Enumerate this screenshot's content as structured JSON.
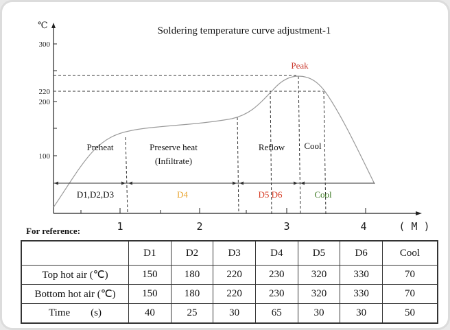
{
  "title": "Soldering temperature curve adjustment-1",
  "y_axis": {
    "unit": "℃",
    "ticks": [
      "300",
      "220",
      "200",
      "100"
    ]
  },
  "x_axis": {
    "unit": "( M )",
    "ticks": [
      "1",
      "2",
      "3",
      "4"
    ]
  },
  "phases": {
    "preheat": "Preheat",
    "preserve": "Preserve heat",
    "infiltrate": "(Infiltrate)",
    "reflow": "Reflow",
    "cool": "Cool",
    "peak": "Peak"
  },
  "zones": {
    "d123": "D1,D2,D3",
    "d4": "D4",
    "d56": "D5 D6",
    "cool": "Cool"
  },
  "colors": {
    "d4": "#e8a22a",
    "d56": "#d63a22",
    "cool": "#3f7a25",
    "peak": "#c8352a",
    "curve": "#9a9a9a"
  },
  "reference_label": "For reference:",
  "table": {
    "header": [
      "",
      "D1",
      "D2",
      "D3",
      "D4",
      "D5",
      "D6",
      "Cool"
    ],
    "rows": [
      [
        "Top hot air (℃)",
        "150",
        "180",
        "220",
        "230",
        "320",
        "330",
        "70"
      ],
      [
        "Bottom hot air (℃)",
        "150",
        "180",
        "220",
        "230",
        "320",
        "330",
        "70"
      ],
      [
        "Time        (s)",
        "40",
        "25",
        "30",
        "65",
        "30",
        "30",
        "50"
      ]
    ]
  }
}
